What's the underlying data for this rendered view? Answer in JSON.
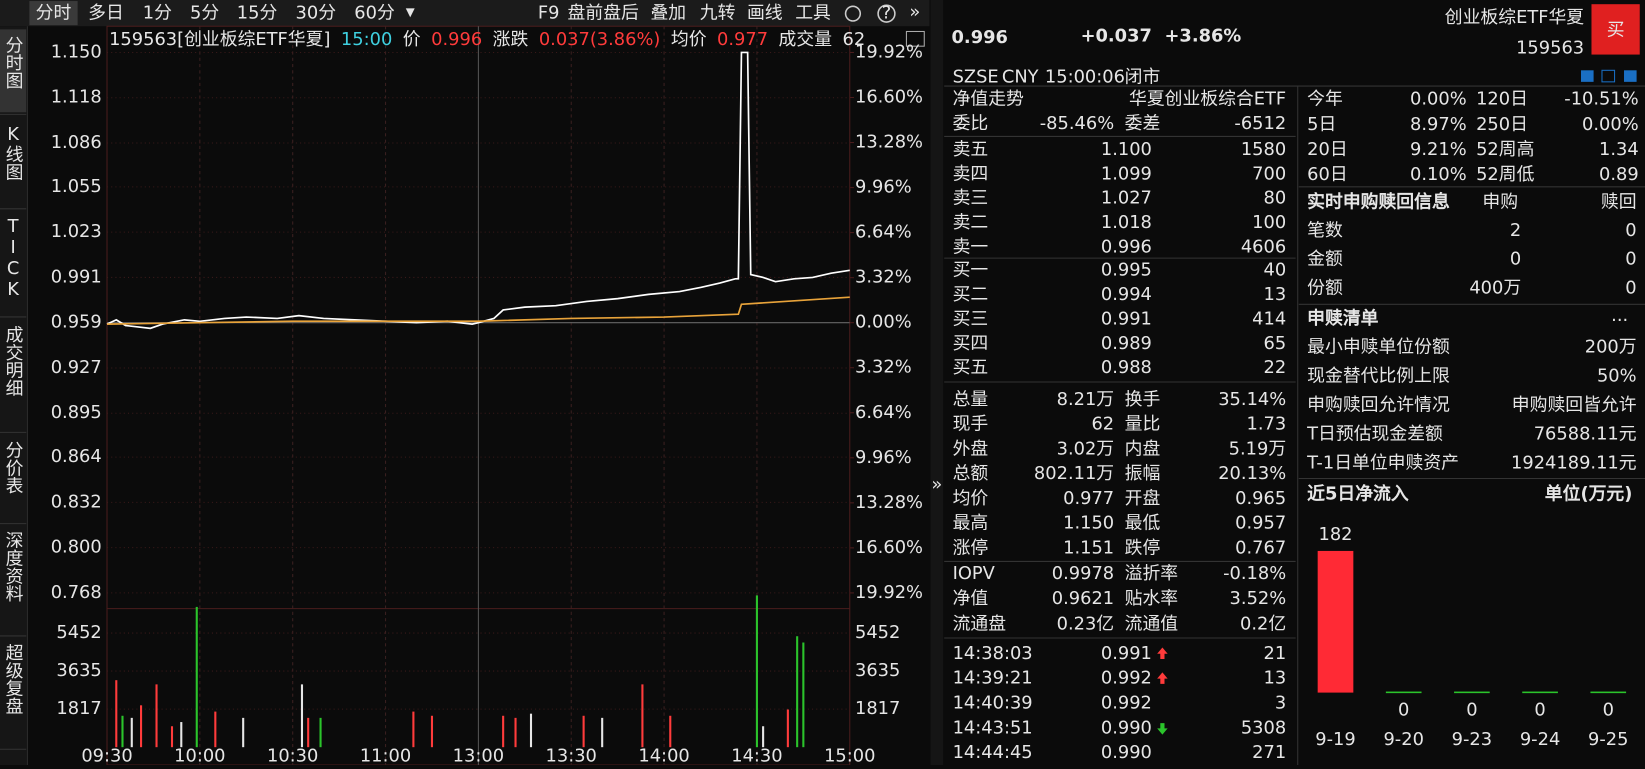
{
  "toolbar": {
    "tabs": [
      "分时",
      "多日",
      "1分",
      "5分",
      "15分",
      "30分",
      "60分"
    ],
    "tools": [
      "F9",
      "盘前盘后",
      "叠加",
      "九转",
      "画线",
      "工具"
    ]
  },
  "sidebar": [
    "分时图",
    "K线图",
    "TICK",
    "成交明细",
    "分价表",
    "深度资料",
    "超级复盘"
  ],
  "chart": {
    "type": "line",
    "info": {
      "code": "159563[创业板综ETF华夏]",
      "time": "15:00",
      "price_label": "价",
      "price": "0.996",
      "change_label": "涨跌",
      "change": "0.037(3.86%)",
      "avg_label": "均价",
      "avg": "0.977",
      "volume_label": "成交量",
      "volume": "62"
    },
    "xlim": [
      0,
      240
    ],
    "xticks": [
      {
        "value": 0,
        "label": "09:30"
      },
      {
        "value": 30,
        "label": "10:00"
      },
      {
        "value": 60,
        "label": "10:30"
      },
      {
        "value": 90,
        "label": "11:00"
      },
      {
        "value": 120,
        "label": "13:00"
      },
      {
        "value": 150,
        "label": "13:30"
      },
      {
        "value": 180,
        "label": "14:00"
      },
      {
        "value": 210,
        "label": "14:30"
      },
      {
        "value": 240,
        "label": "15:00"
      }
    ],
    "ylim": [
      0.768,
      1.15
    ],
    "yticks": [
      {
        "value": 1.15,
        "label": "1.150"
      },
      1.118,
      1.086,
      1.055,
      1.023,
      0.991,
      0.959,
      0.927,
      0.895,
      0.864,
      0.832,
      {
        "value": 0.8,
        "label": "0.800"
      },
      0.768
    ],
    "y2lim": [
      -19.92,
      19.92
    ],
    "y2ticks": [
      {
        "value": 19.92,
        "label": "19.92%"
      },
      {
        "value": 16.6,
        "label": "16.60%"
      },
      {
        "value": 13.28,
        "label": "13.28%"
      },
      {
        "value": 9.96,
        "label": "9.96%"
      },
      {
        "value": 6.64,
        "label": "6.64%"
      },
      {
        "value": 3.32,
        "label": "3.32%"
      },
      {
        "value": 0,
        "label": "0.00%"
      },
      {
        "value": -3.32,
        "label": "3.32%"
      },
      {
        "value": -6.64,
        "label": "6.64%"
      },
      {
        "value": -9.96,
        "label": "9.96%"
      },
      {
        "value": -13.28,
        "label": "13.28%"
      },
      {
        "value": -16.6,
        "label": "16.60%"
      },
      {
        "value": -19.92,
        "label": "19.92%"
      }
    ],
    "series": [
      {
        "color": "#ffffff",
        "x": [
          0,
          3,
          6,
          10,
          14,
          18,
          25,
          30,
          38,
          45,
          55,
          62,
          70,
          80,
          90,
          100,
          110,
          118,
          120,
          125,
          128,
          135,
          145,
          155,
          165,
          175,
          185,
          192,
          198,
          203,
          204,
          205,
          207,
          208,
          212,
          216,
          222,
          228,
          234,
          240
        ],
        "values": [
          0.958,
          0.961,
          0.957,
          0.956,
          0.955,
          0.958,
          0.961,
          0.96,
          0.962,
          0.963,
          0.962,
          0.964,
          0.962,
          0.961,
          0.96,
          0.959,
          0.96,
          0.958,
          0.959,
          0.962,
          0.968,
          0.97,
          0.971,
          0.974,
          0.976,
          0.979,
          0.981,
          0.984,
          0.987,
          0.99,
          0.99,
          1.15,
          1.15,
          0.993,
          0.991,
          0.988,
          0.99,
          0.991,
          0.994,
          0.996
        ]
      },
      {
        "color": "#e8a33a",
        "x": [
          0,
          30,
          60,
          90,
          120,
          150,
          180,
          204,
          205,
          240
        ],
        "values": [
          0.958,
          0.959,
          0.96,
          0.96,
          0.96,
          0.962,
          0.963,
          0.965,
          0.972,
          0.977
        ]
      }
    ],
    "volume": {
      "ylim": [
        0,
        7269
      ],
      "yticks": [
        5452,
        3635,
        1817
      ],
      "x": [
        3,
        5,
        8,
        11,
        16,
        21,
        24,
        29,
        35,
        44,
        63,
        65,
        69,
        99,
        105,
        128,
        132,
        137,
        154,
        160,
        173,
        182,
        210,
        212,
        220,
        223,
        225
      ],
      "values": [
        3200,
        1500,
        1400,
        2000,
        3000,
        1000,
        1200,
        6700,
        1700,
        1400,
        3000,
        1400,
        1400,
        1700,
        1500,
        1500,
        1400,
        1600,
        1500,
        1400,
        3000,
        1500,
        7250,
        1000,
        1800,
        5300,
        5000
      ],
      "colors": [
        "red",
        "green",
        "white",
        "red",
        "red",
        "red",
        "white",
        "green",
        "red",
        "white",
        "white",
        "red",
        "green",
        "red",
        "red",
        "red",
        "red",
        "white",
        "red",
        "white",
        "red",
        "red",
        "green",
        "white",
        "red",
        "green",
        "green"
      ]
    }
  },
  "quote": {
    "price": "0.996",
    "change": "+0.037",
    "change_pct": "+3.86%",
    "name": "创业板综ETF华夏",
    "code": "159563",
    "buy_button": "买",
    "exchange": "SZSE",
    "currency": "CNY",
    "time": "15:00:06",
    "status": "闭市"
  },
  "book": {
    "nav_title": "净值走势",
    "nav_name": "华夏创业板综合ETF",
    "ratio": [
      {
        "label": "委比",
        "value": "-85.46%",
        "color": "green"
      },
      {
        "label": "委差",
        "value": "-6512",
        "color": "green"
      }
    ],
    "asks": [
      {
        "label": "卖五",
        "price": "1.100",
        "volume": "1580"
      },
      {
        "label": "卖四",
        "price": "1.099",
        "volume": "700"
      },
      {
        "label": "卖三",
        "price": "1.027",
        "volume": "80"
      },
      {
        "label": "卖二",
        "price": "1.018",
        "volume": "100"
      },
      {
        "label": "卖一",
        "price": "0.996",
        "volume": "4606"
      }
    ],
    "bids": [
      {
        "label": "买一",
        "price": "0.995",
        "volume": "40"
      },
      {
        "label": "买二",
        "price": "0.994",
        "volume": "13"
      },
      {
        "label": "买三",
        "price": "0.991",
        "volume": "414"
      },
      {
        "label": "买四",
        "price": "0.989",
        "volume": "65"
      },
      {
        "label": "买五",
        "price": "0.988",
        "volume": "22"
      }
    ],
    "stats": [
      [
        {
          "label": "总量",
          "value": "8.21万",
          "color": "white"
        },
        {
          "label": "换手",
          "value": "35.14%",
          "color": "white"
        }
      ],
      [
        {
          "label": "现手",
          "value": "62",
          "color": "white"
        },
        {
          "label": "量比",
          "value": "1.73",
          "color": "white"
        }
      ],
      [
        {
          "label": "外盘",
          "value": "3.02万",
          "color": "red"
        },
        {
          "label": "内盘",
          "value": "5.19万",
          "color": "green"
        }
      ],
      [
        {
          "label": "总额",
          "value": "802.11万",
          "color": "white"
        },
        {
          "label": "振幅",
          "value": "20.13%",
          "color": "white"
        }
      ],
      [
        {
          "label": "均价",
          "value": "0.977",
          "color": "red"
        },
        {
          "label": "开盘",
          "value": "0.965",
          "color": "red"
        }
      ],
      [
        {
          "label": "最高",
          "value": "1.150",
          "color": "red"
        },
        {
          "label": "最低",
          "value": "0.957",
          "color": "green"
        }
      ],
      [
        {
          "label": "涨停",
          "value": "1.151",
          "color": "red"
        },
        {
          "label": "跌停",
          "value": "0.767",
          "color": "green"
        }
      ]
    ],
    "fund_stats": [
      [
        {
          "label": "IOPV",
          "value": "0.9978",
          "color": "white"
        },
        {
          "label": "溢折率",
          "value": "-0.18%",
          "color": "green"
        }
      ],
      [
        {
          "label": "净值",
          "value": "0.9621",
          "color": "red"
        },
        {
          "label": "贴水率",
          "value": "3.52%",
          "color": "red"
        }
      ],
      [
        {
          "label": "流通盘",
          "value": "0.23亿",
          "color": "white"
        },
        {
          "label": "流通值",
          "value": "0.2亿",
          "color": "white"
        }
      ]
    ],
    "trades": [
      {
        "time": "14:38:03",
        "price": "0.991",
        "arrow": "up",
        "volume": "21",
        "color": "red"
      },
      {
        "time": "14:39:21",
        "price": "0.992",
        "arrow": "up",
        "volume": "13",
        "color": "red"
      },
      {
        "time": "14:40:39",
        "price": "0.992",
        "arrow": null,
        "volume": "3",
        "color": "red"
      },
      {
        "time": "14:43:51",
        "price": "0.990",
        "arrow": "down",
        "volume": "5308",
        "color": "green"
      },
      {
        "time": "14:44:45",
        "price": "0.990",
        "arrow": null,
        "volume": "271",
        "color": "green"
      }
    ]
  },
  "periods": [
    [
      {
        "label": "今年",
        "value": "0.00%",
        "color": "white"
      },
      {
        "label": "120日",
        "value": "-10.51%",
        "color": "green"
      }
    ],
    [
      {
        "label": "5日",
        "value": "8.97%",
        "color": "red"
      },
      {
        "label": "250日",
        "value": "0.00%",
        "color": "white"
      }
    ],
    [
      {
        "label": "20日",
        "value": "9.21%",
        "color": "red"
      },
      {
        "label": "52周高",
        "value": "1.34",
        "color": "white"
      }
    ],
    [
      {
        "label": "60日",
        "value": "0.10%",
        "color": "red"
      },
      {
        "label": "52周低",
        "value": "0.89",
        "color": "white"
      }
    ]
  ],
  "subscription": {
    "title": "实时申购赎回信息",
    "columns": [
      "申购",
      "赎回"
    ],
    "rows": [
      [
        "笔数",
        "2",
        "0"
      ],
      [
        "金额",
        "0",
        "0"
      ],
      [
        "份额",
        "400万",
        "0"
      ]
    ]
  },
  "redemption_list": {
    "title": "申赎清单",
    "more": "...",
    "rows": [
      [
        "最小申赎单位份额",
        "200万"
      ],
      [
        "现金替代比例上限",
        "50%"
      ],
      [
        "申购赎回允许情况",
        "申购赎回皆允许"
      ],
      [
        "T日预估现金差额",
        "76588.11元"
      ],
      [
        "T-1日单位申赎资产",
        "1924189.11元"
      ]
    ]
  },
  "net_inflow": {
    "title": "近5日净流入",
    "unit": "单位(万元)",
    "categories": [
      "9-19",
      "9-20",
      "9-23",
      "9-24",
      "9-25"
    ],
    "values": [
      182,
      0,
      0,
      0,
      0
    ]
  }
}
